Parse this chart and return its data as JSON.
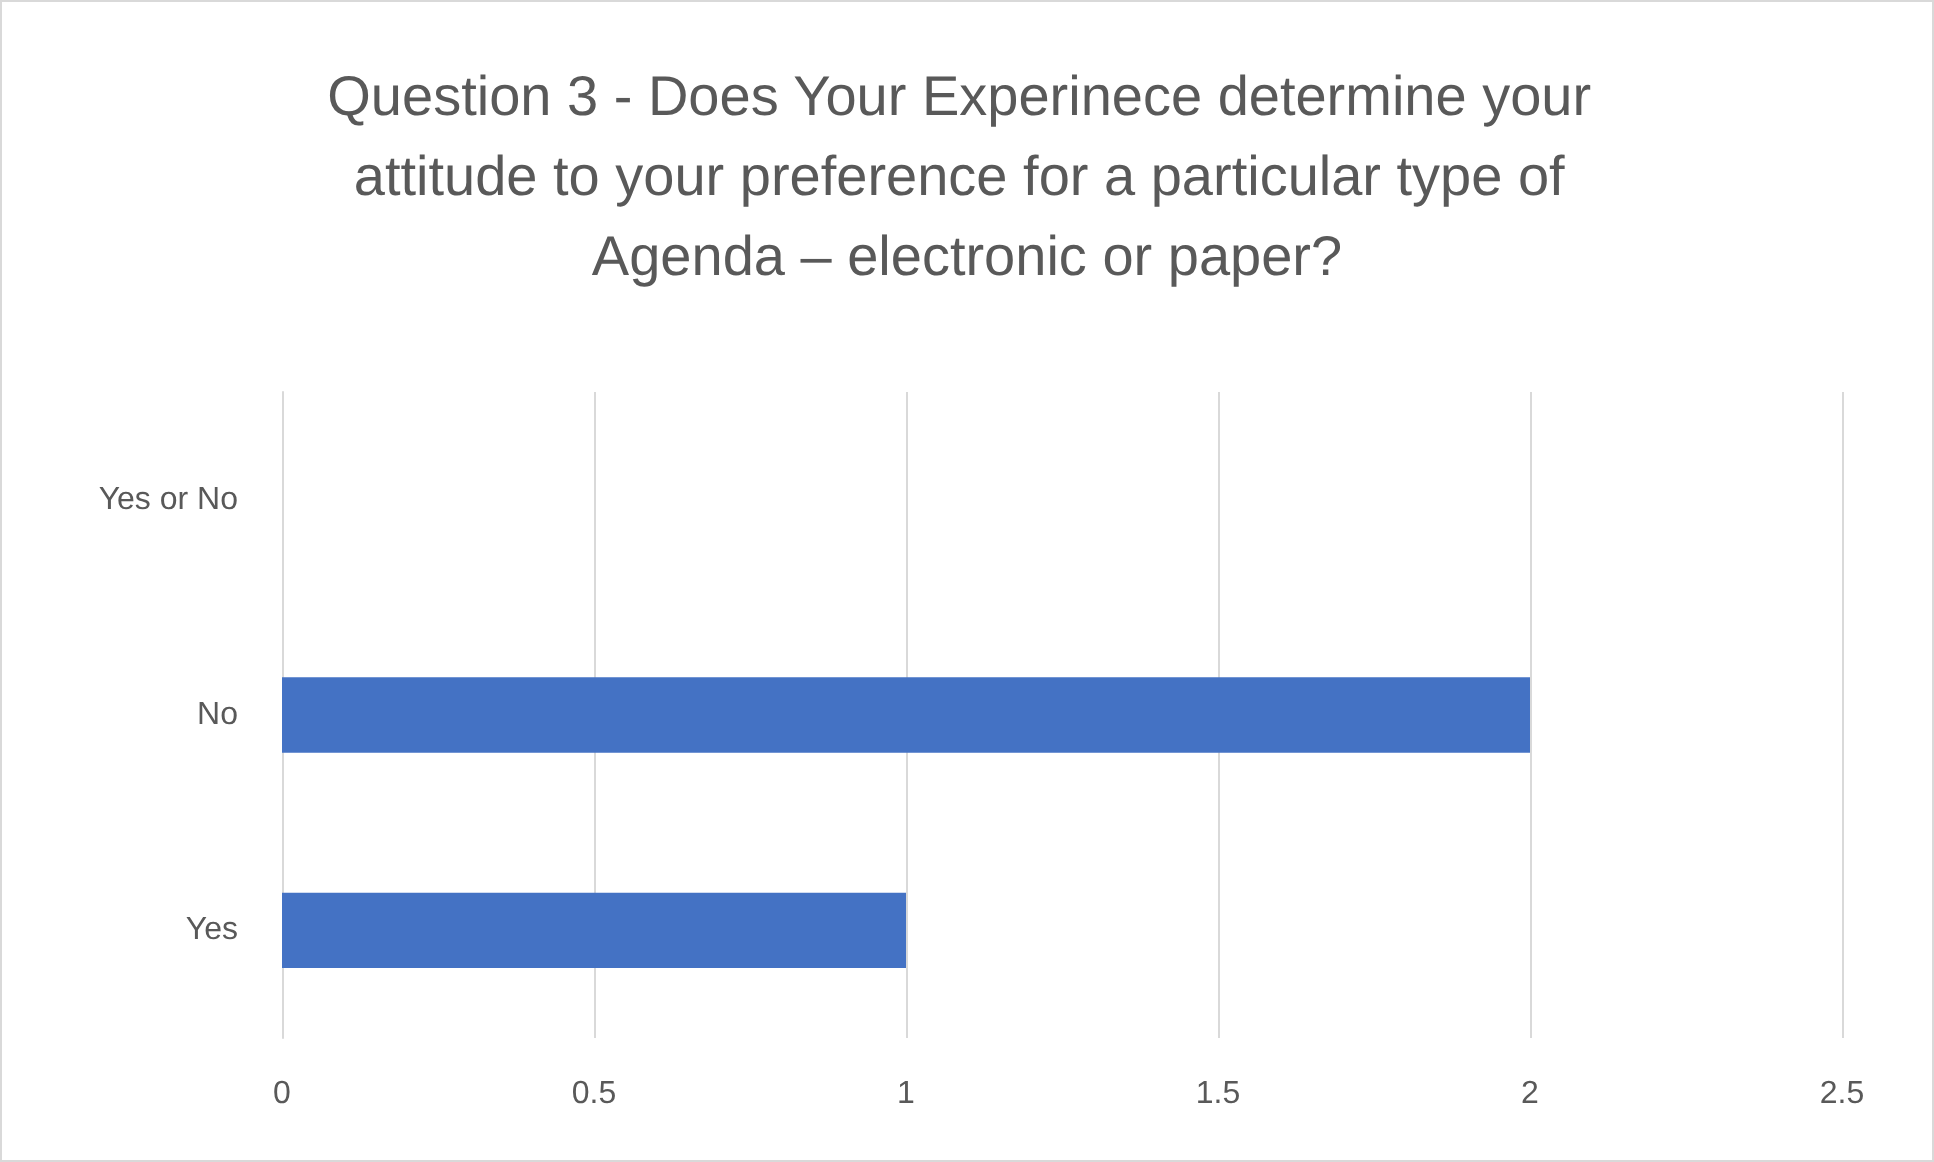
{
  "chart_data": {
    "type": "bar",
    "orientation": "horizontal",
    "title": "Question 3 - Does Your Experinece determine your attitude to your preference for a particular type of Agenda – electronic or paper?",
    "categories": [
      "Yes or No",
      "No",
      "Yes"
    ],
    "values": [
      0,
      2,
      1
    ],
    "color": "#4472c4",
    "xlim": [
      0,
      2.5
    ],
    "xticks": [
      0,
      0.5,
      1,
      1.5,
      2,
      2.5
    ],
    "grid": "x"
  }
}
